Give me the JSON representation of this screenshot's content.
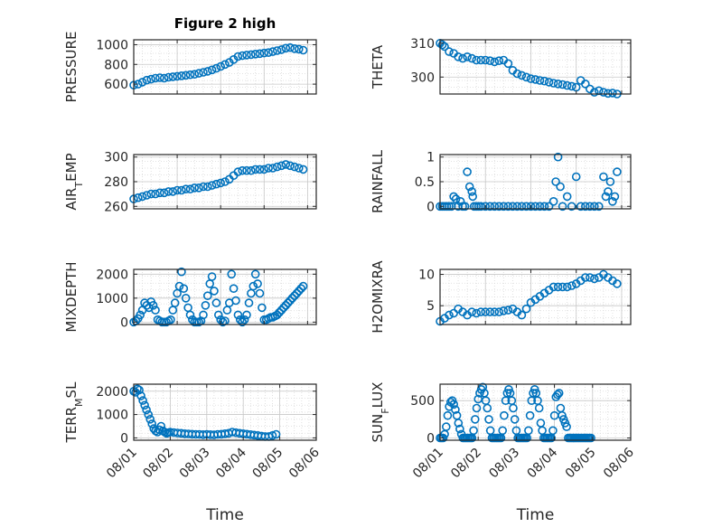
{
  "figure_title": "Figure 2 high",
  "colors": {
    "marker": "#0072BD",
    "axes": "#262626",
    "grid": "#d9d9d9",
    "background": "#ffffff"
  },
  "chart_data": [
    {
      "id": "pressure",
      "type": "scatter",
      "title": "Figure 2 high",
      "ylabel": "PRESSURE",
      "ylabel_parts": [
        {
          "t": "PRESSURE",
          "sub": false
        }
      ],
      "xlabel": "",
      "xlim": [
        0,
        4.2
      ],
      "ylim": [
        500,
        1050
      ],
      "yticks": [
        600,
        800,
        1000
      ],
      "ytick_labels": [
        "600",
        "800",
        "1000"
      ],
      "xticks": [
        0,
        1,
        2,
        3,
        4
      ],
      "xtick_labels": [],
      "grid": true,
      "minor_grid": true,
      "x": [
        0,
        0.1,
        0.2,
        0.3,
        0.4,
        0.5,
        0.6,
        0.7,
        0.8,
        0.9,
        1.0,
        1.1,
        1.2,
        1.3,
        1.4,
        1.5,
        1.6,
        1.7,
        1.8,
        1.9,
        2.0,
        2.1,
        2.2,
        2.3,
        2.4,
        2.5,
        2.6,
        2.7,
        2.8,
        2.9,
        3.0,
        3.1,
        3.2,
        3.3,
        3.4,
        3.5,
        3.6,
        3.7,
        3.8,
        3.9
      ],
      "y": [
        590,
        600,
        620,
        640,
        650,
        660,
        665,
        660,
        670,
        675,
        680,
        685,
        690,
        695,
        700,
        710,
        720,
        730,
        745,
        760,
        780,
        800,
        820,
        850,
        880,
        890,
        895,
        900,
        905,
        910,
        915,
        920,
        930,
        940,
        950,
        965,
        970,
        960,
        955,
        945
      ]
    },
    {
      "id": "theta",
      "type": "scatter",
      "ylabel": "THETA",
      "ylabel_parts": [
        {
          "t": "THETA",
          "sub": false
        }
      ],
      "xlabel": "",
      "xlim": [
        0,
        4.2
      ],
      "ylim": [
        295,
        311
      ],
      "yticks": [
        300,
        310
      ],
      "ytick_labels": [
        "300",
        "310"
      ],
      "xticks": [
        0,
        1,
        2,
        3,
        4
      ],
      "xtick_labels": [],
      "grid": true,
      "minor_grid": true,
      "x": [
        0,
        0.05,
        0.1,
        0.2,
        0.3,
        0.4,
        0.5,
        0.6,
        0.7,
        0.8,
        0.9,
        1.0,
        1.1,
        1.2,
        1.3,
        1.4,
        1.5,
        1.6,
        1.7,
        1.8,
        1.9,
        2.0,
        2.1,
        2.2,
        2.3,
        2.4,
        2.5,
        2.6,
        2.7,
        2.8,
        2.9,
        3.0,
        3.1,
        3.2,
        3.3,
        3.4,
        3.5,
        3.6,
        3.7,
        3.8,
        3.9
      ],
      "y": [
        310,
        309.5,
        309,
        307.5,
        307,
        306,
        305.5,
        306,
        305.5,
        305,
        305,
        305,
        304.8,
        304.5,
        304.8,
        305,
        304,
        302,
        301,
        300.5,
        300,
        299.5,
        299.3,
        299,
        298.8,
        298.5,
        298.2,
        298,
        297.8,
        297.5,
        297.3,
        297,
        299,
        298,
        296.5,
        295.5,
        296,
        295.5,
        295.2,
        295.3,
        295
      ]
    },
    {
      "id": "air_temp",
      "type": "scatter",
      "ylabel": "AIR_TEMP",
      "ylabel_parts": [
        {
          "t": "AIR",
          "sub": false
        },
        {
          "t": "T",
          "sub": true
        },
        {
          "t": "EMP",
          "sub": false
        }
      ],
      "xlabel": "",
      "xlim": [
        0,
        4.2
      ],
      "ylim": [
        258,
        302
      ],
      "yticks": [
        260,
        280,
        300
      ],
      "ytick_labels": [
        "260",
        "280",
        "300"
      ],
      "xticks": [
        0,
        1,
        2,
        3,
        4
      ],
      "xtick_labels": [],
      "grid": true,
      "minor_grid": true,
      "x": [
        0,
        0.1,
        0.2,
        0.3,
        0.4,
        0.5,
        0.6,
        0.7,
        0.8,
        0.9,
        1.0,
        1.1,
        1.2,
        1.3,
        1.4,
        1.5,
        1.6,
        1.7,
        1.8,
        1.9,
        2.0,
        2.1,
        2.2,
        2.3,
        2.4,
        2.5,
        2.6,
        2.7,
        2.8,
        2.9,
        3.0,
        3.1,
        3.2,
        3.3,
        3.4,
        3.5,
        3.6,
        3.7,
        3.8,
        3.9
      ],
      "y": [
        266,
        267,
        268,
        269,
        270,
        270,
        271,
        271,
        272,
        272,
        273,
        273,
        274,
        274,
        275,
        275,
        276,
        276,
        277,
        278,
        279,
        280,
        282,
        285,
        288,
        289,
        289,
        289,
        290,
        290,
        290,
        291,
        291,
        292,
        293,
        294,
        293,
        292,
        291,
        290
      ]
    },
    {
      "id": "rainfall",
      "type": "scatter",
      "ylabel": "RAINFALL",
      "ylabel_parts": [
        {
          "t": "RAINFALL",
          "sub": false
        }
      ],
      "xlabel": "",
      "xlim": [
        0,
        4.2
      ],
      "ylim": [
        -0.05,
        1.05
      ],
      "yticks": [
        0,
        0.5,
        1
      ],
      "ytick_labels": [
        "0",
        "0.5",
        "1"
      ],
      "xticks": [
        0,
        1,
        2,
        3,
        4
      ],
      "xtick_labels": [],
      "grid": true,
      "minor_grid": true,
      "x": [
        0,
        0.05,
        0.1,
        0.15,
        0.2,
        0.25,
        0.3,
        0.35,
        0.4,
        0.45,
        0.5,
        0.55,
        0.6,
        0.65,
        0.7,
        0.72,
        0.75,
        0.8,
        0.85,
        0.9,
        1.0,
        1.1,
        1.2,
        1.3,
        1.4,
        1.5,
        1.6,
        1.7,
        1.8,
        1.9,
        2.0,
        2.1,
        2.2,
        2.3,
        2.4,
        2.5,
        2.55,
        2.6,
        2.65,
        2.7,
        2.8,
        2.9,
        3.0,
        3.1,
        3.2,
        3.3,
        3.4,
        3.5,
        3.6,
        3.65,
        3.7,
        3.75,
        3.8,
        3.85,
        3.9
      ],
      "y": [
        0,
        0,
        0,
        0,
        0,
        0,
        0.2,
        0.15,
        0,
        0.1,
        0,
        0,
        0.7,
        0.4,
        0.3,
        0.2,
        0,
        0,
        0,
        0,
        0,
        0,
        0,
        0,
        0,
        0,
        0,
        0,
        0,
        0,
        0,
        0,
        0,
        0,
        0,
        0.1,
        0.5,
        1.0,
        0.4,
        0,
        0.2,
        0,
        0.6,
        0,
        0,
        0,
        0,
        0,
        0.6,
        0.2,
        0.3,
        0.5,
        0.1,
        0.2,
        0.7
      ]
    },
    {
      "id": "mixdepth",
      "type": "scatter",
      "ylabel": "MIXDEPTH",
      "ylabel_parts": [
        {
          "t": "MIXDEPTH",
          "sub": false
        }
      ],
      "xlabel": "",
      "xlim": [
        0,
        4.2
      ],
      "ylim": [
        -100,
        2200
      ],
      "yticks": [
        0,
        1000,
        2000
      ],
      "ytick_labels": [
        "0",
        "1000",
        "2000"
      ],
      "xticks": [
        0,
        1,
        2,
        3,
        4
      ],
      "xtick_labels": [],
      "grid": true,
      "minor_grid": true,
      "x": [
        0,
        0.05,
        0.1,
        0.15,
        0.2,
        0.25,
        0.3,
        0.35,
        0.4,
        0.45,
        0.5,
        0.55,
        0.6,
        0.65,
        0.7,
        0.75,
        0.8,
        0.85,
        0.9,
        0.95,
        1.0,
        1.05,
        1.1,
        1.15,
        1.2,
        1.25,
        1.3,
        1.35,
        1.4,
        1.45,
        1.5,
        1.55,
        1.6,
        1.65,
        1.7,
        1.75,
        1.8,
        1.85,
        1.9,
        1.95,
        2.0,
        2.05,
        2.1,
        2.15,
        2.2,
        2.25,
        2.3,
        2.35,
        2.4,
        2.45,
        2.5,
        2.55,
        2.6,
        2.65,
        2.7,
        2.75,
        2.8,
        2.85,
        2.9,
        2.95,
        3.0,
        3.05,
        3.1,
        3.15,
        3.2,
        3.25,
        3.3,
        3.35,
        3.4,
        3.45,
        3.5,
        3.55,
        3.6,
        3.65,
        3.7,
        3.75,
        3.8,
        3.85,
        3.9
      ],
      "y": [
        0,
        50,
        150,
        300,
        500,
        800,
        700,
        600,
        850,
        700,
        500,
        100,
        50,
        0,
        0,
        0,
        50,
        100,
        500,
        800,
        1200,
        1500,
        2100,
        1400,
        1000,
        600,
        300,
        100,
        0,
        0,
        0,
        50,
        300,
        700,
        1100,
        1600,
        1900,
        1300,
        800,
        300,
        100,
        0,
        50,
        500,
        800,
        2000,
        1400,
        900,
        300,
        100,
        0,
        100,
        300,
        800,
        1200,
        1500,
        2000,
        1600,
        1200,
        600,
        100,
        100,
        150,
        200,
        200,
        250,
        300,
        400,
        500,
        600,
        700,
        800,
        900,
        1000,
        1100,
        1200,
        1300,
        1400,
        1500
      ]
    },
    {
      "id": "h2omixra",
      "type": "scatter",
      "ylabel": "H2OMIXRA",
      "ylabel_parts": [
        {
          "t": "H2OMIXRA",
          "sub": false
        }
      ],
      "xlabel": "",
      "xlim": [
        0,
        4.2
      ],
      "ylim": [
        2,
        10.8
      ],
      "yticks": [
        5,
        10
      ],
      "ytick_labels": [
        "5",
        "10"
      ],
      "xticks": [
        0,
        1,
        2,
        3,
        4
      ],
      "xtick_labels": [],
      "grid": true,
      "minor_grid": true,
      "x": [
        0,
        0.1,
        0.2,
        0.3,
        0.4,
        0.5,
        0.6,
        0.7,
        0.8,
        0.9,
        1.0,
        1.1,
        1.2,
        1.3,
        1.4,
        1.5,
        1.6,
        1.7,
        1.8,
        1.9,
        2.0,
        2.1,
        2.2,
        2.3,
        2.4,
        2.5,
        2.6,
        2.7,
        2.8,
        2.9,
        3.0,
        3.1,
        3.2,
        3.3,
        3.4,
        3.5,
        3.6,
        3.7,
        3.8,
        3.9
      ],
      "y": [
        2.5,
        3,
        3.5,
        3.8,
        4.5,
        4,
        3.5,
        4,
        3.8,
        4,
        4,
        4,
        4,
        4,
        4.2,
        4.3,
        4.5,
        4,
        3.5,
        4.5,
        5.5,
        6,
        6.5,
        7,
        7.5,
        8,
        8,
        8,
        8,
        8.2,
        8.5,
        9,
        9.5,
        9.5,
        9.3,
        9.5,
        10,
        9.5,
        9,
        8.5
      ]
    },
    {
      "id": "terr_msl",
      "type": "scatter",
      "ylabel": "TERR_MSL",
      "ylabel_parts": [
        {
          "t": "TERR",
          "sub": false
        },
        {
          "t": "M",
          "sub": true
        },
        {
          "t": "SL",
          "sub": false
        }
      ],
      "xlabel": "Time",
      "xlim": [
        0,
        5
      ],
      "ylim": [
        -100,
        2300
      ],
      "yticks": [
        0,
        1000,
        2000
      ],
      "ytick_labels": [
        "0",
        "1000",
        "2000"
      ],
      "xticks": [
        0,
        1,
        2,
        3,
        4,
        5
      ],
      "xtick_labels": [
        "08/01",
        "08/02",
        "08/03",
        "08/04",
        "08/05",
        "08/06"
      ],
      "grid": true,
      "minor_grid": true,
      "x": [
        0,
        0.05,
        0.1,
        0.15,
        0.2,
        0.25,
        0.3,
        0.35,
        0.4,
        0.45,
        0.5,
        0.55,
        0.6,
        0.65,
        0.7,
        0.75,
        0.8,
        0.85,
        0.9,
        0.95,
        1.0,
        1.1,
        1.2,
        1.3,
        1.4,
        1.5,
        1.6,
        1.7,
        1.8,
        1.9,
        2.0,
        2.1,
        2.2,
        2.3,
        2.4,
        2.5,
        2.6,
        2.7,
        2.8,
        2.9,
        3.0,
        3.1,
        3.2,
        3.3,
        3.4,
        3.5,
        3.6,
        3.7,
        3.8,
        3.9
      ],
      "y": [
        2000,
        1950,
        2100,
        2050,
        1800,
        1600,
        1400,
        1200,
        1000,
        800,
        600,
        400,
        300,
        250,
        350,
        500,
        300,
        250,
        200,
        220,
        250,
        230,
        210,
        200,
        180,
        170,
        160,
        150,
        150,
        140,
        150,
        140,
        130,
        150,
        160,
        180,
        200,
        250,
        220,
        200,
        180,
        160,
        140,
        120,
        100,
        80,
        60,
        60,
        100,
        150
      ]
    },
    {
      "id": "sun_flux",
      "type": "scatter",
      "ylabel": "SUN_FLUX",
      "ylabel_parts": [
        {
          "t": "SUN",
          "sub": false
        },
        {
          "t": "F",
          "sub": true
        },
        {
          "t": "LUX",
          "sub": false
        }
      ],
      "xlabel": "Time",
      "xlim": [
        0,
        5
      ],
      "ylim": [
        -30,
        720
      ],
      "yticks": [
        0,
        500
      ],
      "ytick_labels": [
        "0",
        "500"
      ],
      "xticks": [
        0,
        1,
        2,
        3,
        4,
        5
      ],
      "xtick_labels": [
        "08/01",
        "08/02",
        "08/03",
        "08/04",
        "08/05",
        "08/06"
      ],
      "grid": true,
      "minor_grid": true,
      "x": [
        0,
        0.04,
        0.08,
        0.12,
        0.16,
        0.2,
        0.24,
        0.28,
        0.32,
        0.36,
        0.4,
        0.44,
        0.48,
        0.52,
        0.56,
        0.6,
        0.64,
        0.68,
        0.72,
        0.76,
        0.8,
        0.84,
        0.88,
        0.92,
        0.96,
        1.0,
        1.04,
        1.08,
        1.12,
        1.16,
        1.2,
        1.24,
        1.28,
        1.32,
        1.36,
        1.4,
        1.44,
        1.48,
        1.52,
        1.56,
        1.6,
        1.64,
        1.68,
        1.72,
        1.76,
        1.8,
        1.84,
        1.88,
        1.92,
        1.96,
        2.0,
        2.04,
        2.08,
        2.12,
        2.16,
        2.2,
        2.24,
        2.28,
        2.32,
        2.36,
        2.4,
        2.44,
        2.48,
        2.52,
        2.56,
        2.6,
        2.64,
        2.68,
        2.72,
        2.76,
        2.8,
        2.84,
        2.88,
        2.92,
        2.96,
        3.0,
        3.04,
        3.08,
        3.12,
        3.16,
        3.2,
        3.24,
        3.28,
        3.32,
        3.36,
        3.4,
        3.44,
        3.48,
        3.52,
        3.56,
        3.6,
        3.64,
        3.68,
        3.72,
        3.76,
        3.8,
        3.84,
        3.88,
        3.92,
        3.96
      ],
      "y": [
        0,
        0,
        0,
        50,
        150,
        300,
        420,
        480,
        500,
        450,
        380,
        300,
        200,
        120,
        50,
        0,
        0,
        0,
        0,
        0,
        0,
        0,
        100,
        250,
        400,
        520,
        600,
        650,
        680,
        600,
        500,
        400,
        250,
        100,
        0,
        0,
        0,
        0,
        0,
        0,
        0,
        100,
        300,
        500,
        600,
        650,
        600,
        500,
        400,
        250,
        100,
        0,
        0,
        0,
        0,
        0,
        0,
        0,
        100,
        300,
        500,
        600,
        650,
        600,
        500,
        400,
        200,
        100,
        0,
        0,
        0,
        0,
        0,
        0,
        100,
        300,
        550,
        580,
        600,
        400,
        300,
        250,
        200,
        150,
        0,
        0,
        0,
        0,
        0,
        0,
        0,
        0,
        0,
        0,
        0,
        0,
        0,
        0,
        0,
        0
      ]
    }
  ]
}
